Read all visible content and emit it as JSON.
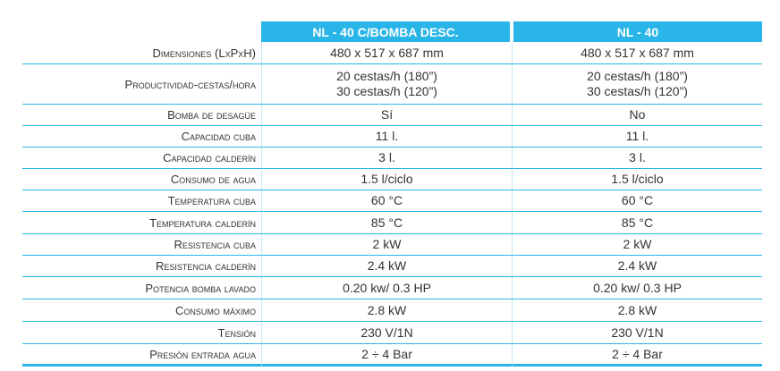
{
  "table": {
    "headers": [
      "NL - 40 C/BOMBA DESC.",
      "NL - 40"
    ],
    "rows": [
      {
        "label": "Dimensiones (LxPxH)",
        "cells": [
          [
            "480 x 517 x 687 mm"
          ],
          [
            "480 x 517 x 687 mm"
          ]
        ]
      },
      {
        "label": "Productividad-cestas/hora",
        "cells": [
          [
            "20 cestas/h (180”)",
            "30 cestas/h (120”)"
          ],
          [
            "20 cestas/h (180”)",
            "30 cestas/h (120”)"
          ]
        ]
      },
      {
        "label": "Bomba de desagüe",
        "cells": [
          [
            "Sí"
          ],
          [
            "No"
          ]
        ]
      },
      {
        "label": "Capacidad cuba",
        "cells": [
          [
            "11 l."
          ],
          [
            "11 l."
          ]
        ]
      },
      {
        "label": "Capacidad calderín",
        "cells": [
          [
            "3 l."
          ],
          [
            "3 l."
          ]
        ]
      },
      {
        "label": "Consumo de agua",
        "cells": [
          [
            "1.5  l/ciclo"
          ],
          [
            "1.5  l/ciclo"
          ]
        ]
      },
      {
        "label": "Temperatura cuba",
        "cells": [
          [
            "60 °C"
          ],
          [
            "60 °C"
          ]
        ]
      },
      {
        "label": "Temperatura calderín",
        "cells": [
          [
            "85 °C"
          ],
          [
            "85 °C"
          ]
        ]
      },
      {
        "label": "Resistencia cuba",
        "cells": [
          [
            "2 kW"
          ],
          [
            "2 kW"
          ]
        ]
      },
      {
        "label": "Resistencia calderín",
        "cells": [
          [
            "2.4 kW"
          ],
          [
            "2.4 kW"
          ]
        ]
      },
      {
        "label": "Potencia bomba lavado",
        "cells": [
          [
            "0.20 kw/ 0.3 HP"
          ],
          [
            "0.20 kw/ 0.3 HP"
          ]
        ]
      },
      {
        "label": "Consumo máximo",
        "cells": [
          [
            "2.8 kW"
          ],
          [
            "2.8 kW"
          ]
        ]
      },
      {
        "label": "Tensión",
        "cells": [
          [
            "230 V/1N"
          ],
          [
            "230 V/1N"
          ]
        ]
      },
      {
        "label": "Presión entrada agua",
        "cells": [
          [
            "2 ÷ 4 Bar"
          ],
          [
            "2 ÷ 4 Bar"
          ]
        ]
      }
    ]
  }
}
